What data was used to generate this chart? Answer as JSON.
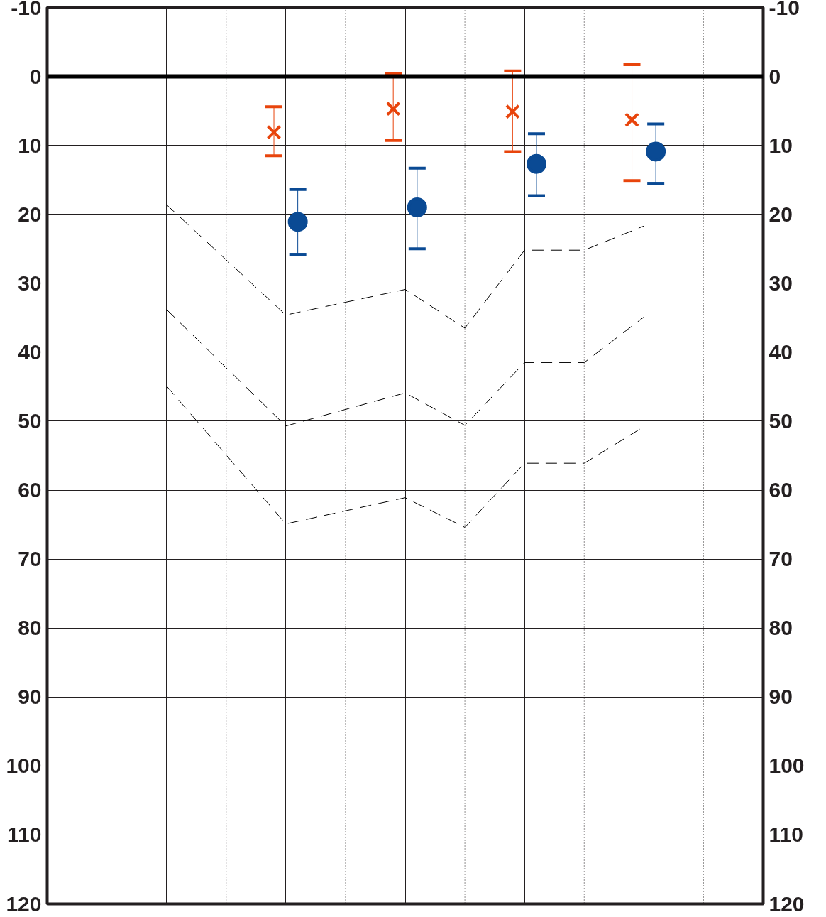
{
  "chart_data": {
    "type": "scatter",
    "tick_labels": "y",
    "grid": true,
    "categories": [
      null,
      null,
      null,
      null,
      null,
      null,
      null,
      null,
      null,
      null
    ],
    "ylim": [
      120,
      -10
    ],
    "yticks": [
      -10,
      0,
      10,
      20,
      30,
      40,
      50,
      60,
      70,
      80,
      90,
      100,
      110,
      120
    ],
    "y2lim": [
      120,
      -10
    ],
    "y2ticks": [
      -10,
      0,
      10,
      20,
      30,
      40,
      50,
      60,
      70,
      80,
      90,
      100,
      110,
      120
    ],
    "ref_lines": [
      {
        "axis": "y",
        "value": 0,
        "color": "#000000"
      }
    ],
    "series": [
      {
        "marker": "cross",
        "color": "#e8440c",
        "values": [
          null,
          null,
          8.1,
          null,
          4.7,
          null,
          5.1,
          null,
          6.3,
          null
        ],
        "errors": [
          null,
          null,
          [
            4.4,
            11.5
          ],
          null,
          [
            -0.4,
            9.3
          ],
          null,
          [
            -0.8,
            10.9
          ],
          null,
          [
            -1.7,
            15.1
          ],
          null
        ]
      },
      {
        "marker": "circle",
        "color": "#0a4a94",
        "values": [
          null,
          null,
          21.1,
          null,
          19.0,
          null,
          12.7,
          null,
          10.9,
          null
        ],
        "errors": [
          null,
          null,
          [
            16.4,
            25.8
          ],
          null,
          [
            13.3,
            25.0
          ],
          null,
          [
            8.3,
            17.3
          ],
          null,
          [
            6.9,
            15.5
          ],
          null
        ]
      },
      {
        "type": "line",
        "line_style": "dashed",
        "color": "#000000",
        "values": [
          18.6,
          null,
          34.6,
          null,
          30.9,
          36.5,
          25.2,
          25.2,
          21.7,
          null
        ]
      },
      {
        "type": "line",
        "line_style": "dashed",
        "color": "#000000",
        "values": [
          33.8,
          null,
          50.7,
          null,
          45.9,
          50.6,
          41.5,
          41.5,
          34.9,
          null
        ]
      },
      {
        "type": "line",
        "line_style": "dashed",
        "color": "#000000",
        "values": [
          44.9,
          null,
          64.9,
          null,
          61.1,
          65.4,
          56.1,
          56.1,
          50.8,
          null
        ]
      }
    ]
  }
}
